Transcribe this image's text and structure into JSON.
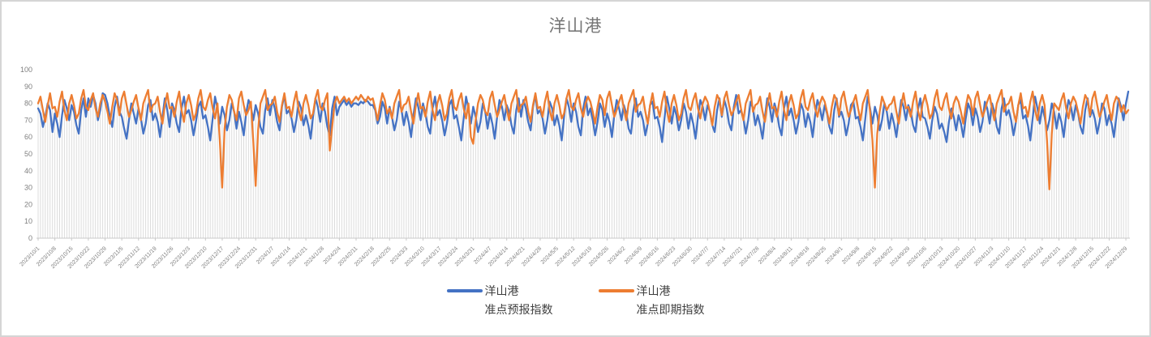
{
  "window": {
    "background": "#ffffff",
    "border_color": "#d5d5d5"
  },
  "chart_data": {
    "type": "line",
    "title": "洋山港",
    "xlabel": "",
    "ylabel": "",
    "ylim": [
      0,
      100
    ],
    "y_ticks": [
      0,
      10,
      20,
      30,
      40,
      50,
      60,
      70,
      80,
      90,
      100
    ],
    "grid": "vertical drop-lines, one per daily data point; no horizontal gridlines",
    "legend_position": "bottom",
    "axis_color": "#c9c9c9",
    "dropline_color": "#dcdcdc",
    "tick_label_color": "#7f7f7f",
    "title_color": "#757575",
    "x_tick_interval_days": 7,
    "x_tick_labels": [
      "2023/10/1",
      "2023/10/8",
      "2023/10/15",
      "2023/10/22",
      "2023/10/29",
      "2023/11/5",
      "2023/11/12",
      "2023/11/19",
      "2023/11/26",
      "2023/12/3",
      "2023/12/10",
      "2023/12/17",
      "2023/12/24",
      "2023/12/31",
      "2024/1/7",
      "2024/1/14",
      "2024/1/21",
      "2024/1/28",
      "2024/2/4",
      "2024/2/11",
      "2024/2/18",
      "2024/2/25",
      "2024/3/3",
      "2024/3/10",
      "2024/3/17",
      "2024/3/24",
      "2024/3/31",
      "2024/4/7",
      "2024/4/14",
      "2024/4/21",
      "2024/4/28",
      "2024/5/5",
      "2024/5/12",
      "2024/5/19",
      "2024/5/26",
      "2024/6/2",
      "2024/6/9",
      "2024/6/16",
      "2024/6/23",
      "2024/6/30",
      "2024/7/7",
      "2024/7/14",
      "2024/7/21",
      "2024/7/28",
      "2024/8/4",
      "2024/8/11",
      "2024/8/18",
      "2024/8/25",
      "2024/9/1",
      "2024/9/8",
      "2024/9/15",
      "2024/9/22",
      "2024/9/29",
      "2024/10/6",
      "2024/10/13",
      "2024/10/20",
      "2024/10/27",
      "2024/11/3",
      "2024/11/10",
      "2024/11/17",
      "2024/11/24",
      "2024/12/1",
      "2024/12/8",
      "2024/12/15",
      "2024/12/22",
      "2024/12/29"
    ],
    "series": [
      {
        "name": "洋山港 准点预报指数",
        "color": "#4472C4",
        "values": [
          77,
          74,
          66,
          72,
          80,
          76,
          63,
          74,
          68,
          60,
          73,
          82,
          77,
          70,
          79,
          75,
          67,
          62,
          76,
          83,
          72,
          83,
          78,
          85,
          80,
          70,
          76,
          86,
          85,
          80,
          72,
          66,
          78,
          84,
          75,
          72,
          65,
          59,
          70,
          80,
          74,
          68,
          77,
          71,
          62,
          68,
          79,
          82,
          70,
          74,
          69,
          60,
          72,
          83,
          76,
          66,
          80,
          76,
          68,
          63,
          77,
          84,
          74,
          76,
          70,
          61,
          69,
          78,
          81,
          71,
          73,
          66,
          58,
          71,
          84,
          77,
          68,
          78,
          73,
          64,
          70,
          80,
          75,
          65,
          75,
          69,
          61,
          74,
          82,
          78,
          70,
          79,
          74,
          66,
          62,
          76,
          83,
          73,
          82,
          77,
          69,
          64,
          78,
          85,
          74,
          76,
          71,
          63,
          70,
          81,
          77,
          67,
          73,
          67,
          59,
          72,
          83,
          78,
          69,
          80,
          75,
          66,
          61,
          77,
          84,
          73,
          78,
          80,
          82,
          79,
          81,
          78,
          80,
          80,
          79,
          81,
          80,
          82,
          81,
          79,
          79,
          76,
          68,
          72,
          81,
          77,
          68,
          78,
          72,
          64,
          70,
          81,
          76,
          67,
          75,
          69,
          60,
          73,
          83,
          78,
          70,
          80,
          74,
          66,
          62,
          77,
          84,
          73,
          76,
          70,
          61,
          68,
          79,
          82,
          71,
          73,
          66,
          58,
          71,
          84,
          77,
          68,
          78,
          72,
          63,
          69,
          80,
          75,
          65,
          74,
          68,
          59,
          72,
          82,
          78,
          70,
          79,
          75,
          67,
          62,
          76,
          83,
          72,
          82,
          77,
          69,
          64,
          78,
          85,
          74,
          76,
          71,
          62,
          70,
          81,
          77,
          67,
          73,
          67,
          58,
          72,
          83,
          78,
          69,
          80,
          75,
          66,
          61,
          77,
          84,
          73,
          77,
          70,
          61,
          69,
          80,
          76,
          66,
          74,
          69,
          60,
          73,
          82,
          77,
          70,
          79,
          74,
          65,
          62,
          76,
          83,
          72,
          75,
          70,
          61,
          68,
          79,
          81,
          71,
          72,
          66,
          57,
          71,
          84,
          77,
          68,
          78,
          73,
          64,
          70,
          80,
          75,
          65,
          74,
          68,
          59,
          72,
          82,
          78,
          70,
          79,
          75,
          67,
          63,
          76,
          83,
          72,
          82,
          77,
          68,
          64,
          78,
          85,
          74,
          76,
          71,
          62,
          70,
          81,
          77,
          67,
          73,
          67,
          59,
          72,
          83,
          78,
          69,
          80,
          75,
          66,
          61,
          77,
          84,
          73,
          77,
          70,
          62,
          69,
          80,
          76,
          66,
          74,
          69,
          60,
          73,
          82,
          77,
          70,
          79,
          74,
          66,
          62,
          76,
          83,
          72,
          75,
          70,
          61,
          68,
          79,
          81,
          71,
          72,
          66,
          58,
          71,
          84,
          77,
          68,
          78,
          73,
          64,
          70,
          80,
          75,
          65,
          74,
          68,
          60,
          72,
          82,
          78,
          70,
          79,
          75,
          67,
          63,
          76,
          83,
          72,
          71,
          66,
          59,
          70,
          78,
          74,
          65,
          68,
          63,
          57,
          69,
          77,
          72,
          64,
          73,
          68,
          60,
          71,
          80,
          76,
          67,
          77,
          72,
          63,
          69,
          81,
          77,
          68,
          80,
          75,
          66,
          62,
          77,
          83,
          73,
          76,
          70,
          61,
          69,
          79,
          82,
          71,
          73,
          67,
          58,
          71,
          84,
          77,
          68,
          78,
          72,
          64,
          70,
          80,
          75,
          65,
          74,
          69,
          60,
          73,
          82,
          78,
          70,
          79,
          74,
          66,
          62,
          76,
          83,
          72,
          76,
          71,
          62,
          69,
          80,
          77,
          67,
          73,
          68,
          60,
          72,
          83,
          78,
          70,
          80,
          87
        ]
      },
      {
        "name": "洋山港 准点即期指数",
        "color": "#ED7D31",
        "values": [
          80,
          84,
          76,
          69,
          79,
          86,
          77,
          78,
          72,
          81,
          87,
          76,
          70,
          80,
          85,
          79,
          71,
          74,
          83,
          88,
          78,
          76,
          82,
          86,
          77,
          72,
          80,
          85,
          81,
          75,
          68,
          78,
          86,
          82,
          73,
          83,
          87,
          79,
          72,
          76,
          81,
          85,
          77,
          70,
          80,
          84,
          88,
          75,
          79,
          80,
          84,
          75,
          68,
          79,
          86,
          77,
          78,
          72,
          81,
          87,
          76,
          69,
          80,
          85,
          79,
          70,
          74,
          83,
          88,
          78,
          76,
          82,
          86,
          77,
          71,
          80,
          58,
          30,
          65,
          78,
          85,
          82,
          75,
          70,
          83,
          87,
          79,
          73,
          76,
          81,
          57,
          31,
          64,
          80,
          84,
          88,
          76,
          79,
          80,
          84,
          75,
          69,
          79,
          86,
          77,
          78,
          72,
          81,
          87,
          76,
          70,
          80,
          85,
          79,
          71,
          74,
          83,
          88,
          78,
          76,
          82,
          86,
          52,
          66,
          80,
          84,
          80,
          82,
          84,
          81,
          83,
          80,
          82,
          84,
          82,
          85,
          83,
          81,
          84,
          82,
          83,
          77,
          70,
          79,
          86,
          82,
          74,
          77,
          71,
          80,
          84,
          88,
          75,
          79,
          80,
          84,
          75,
          68,
          79,
          86,
          77,
          78,
          72,
          81,
          87,
          76,
          70,
          80,
          85,
          79,
          70,
          74,
          83,
          88,
          78,
          76,
          82,
          86,
          77,
          71,
          80,
          60,
          56,
          70,
          80,
          85,
          82,
          75,
          73,
          83,
          87,
          79,
          72,
          76,
          81,
          85,
          77,
          70,
          80,
          84,
          88,
          75,
          79,
          80,
          84,
          75,
          69,
          79,
          86,
          77,
          78,
          72,
          81,
          87,
          76,
          70,
          80,
          85,
          79,
          71,
          74,
          83,
          88,
          78,
          76,
          82,
          86,
          77,
          72,
          80,
          84,
          81,
          75,
          68,
          78,
          85,
          82,
          73,
          83,
          87,
          79,
          72,
          76,
          81,
          85,
          77,
          70,
          80,
          84,
          88,
          75,
          79,
          80,
          84,
          75,
          68,
          79,
          86,
          77,
          78,
          72,
          81,
          87,
          76,
          69,
          80,
          85,
          79,
          70,
          74,
          83,
          88,
          78,
          76,
          82,
          86,
          77,
          71,
          80,
          84,
          81,
          75,
          67,
          78,
          85,
          82,
          73,
          83,
          87,
          79,
          73,
          76,
          81,
          85,
          77,
          70,
          80,
          84,
          88,
          75,
          79,
          80,
          84,
          75,
          69,
          79,
          86,
          77,
          78,
          72,
          81,
          87,
          76,
          70,
          80,
          85,
          79,
          71,
          74,
          83,
          88,
          78,
          76,
          82,
          86,
          77,
          72,
          80,
          84,
          81,
          75,
          68,
          78,
          85,
          82,
          73,
          83,
          87,
          79,
          72,
          76,
          81,
          85,
          77,
          70,
          80,
          84,
          88,
          75,
          58,
          30,
          62,
          75,
          84,
          80,
          76,
          79,
          80,
          84,
          75,
          68,
          79,
          86,
          77,
          78,
          72,
          81,
          87,
          76,
          70,
          80,
          85,
          79,
          71,
          74,
          83,
          88,
          78,
          76,
          82,
          86,
          77,
          71,
          80,
          84,
          81,
          75,
          68,
          78,
          85,
          82,
          73,
          83,
          87,
          79,
          72,
          76,
          81,
          85,
          77,
          70,
          80,
          84,
          88,
          75,
          79,
          80,
          84,
          75,
          69,
          79,
          86,
          77,
          78,
          72,
          81,
          87,
          76,
          70,
          80,
          85,
          79,
          58,
          29,
          62,
          80,
          78,
          76,
          82,
          86,
          77,
          71,
          80,
          84,
          81,
          75,
          68,
          78,
          85,
          82,
          73,
          83,
          87,
          79,
          72,
          76,
          81,
          85,
          77,
          70,
          80,
          84,
          82,
          75,
          79,
          74,
          76
        ]
      }
    ]
  },
  "legend": {
    "items": [
      {
        "line1": "洋山港",
        "line2": "准点预报指数",
        "color": "#4472C4"
      },
      {
        "line1": "洋山港",
        "line2": "准点即期指数",
        "color": "#ED7D31"
      }
    ]
  }
}
